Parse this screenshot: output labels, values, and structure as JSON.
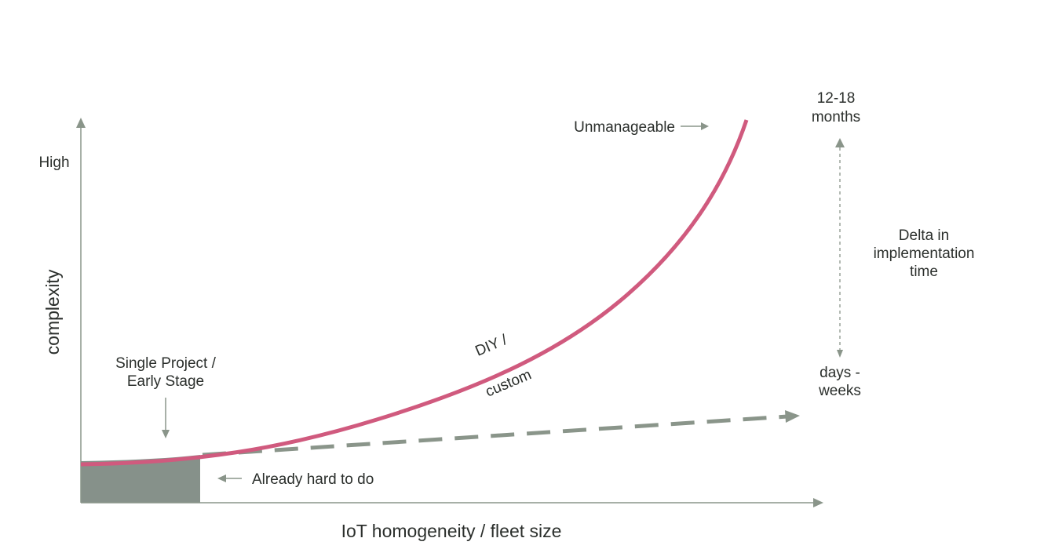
{
  "axes": {
    "x_label": "IoT homogeneity / fleet size",
    "y_label": "complexity",
    "y_high_label": "High"
  },
  "annotations": {
    "unmanageable": "Unmanageable",
    "single_project_line1": "Single Project /",
    "single_project_line2": "Early Stage",
    "already_hard": "Already hard to do",
    "diy_line1": "DIY /",
    "diy_line2": "custom",
    "months_line1": "12-18",
    "months_line2": "months",
    "days_line1": "days -",
    "days_line2": "weeks",
    "delta_line1": "Delta in",
    "delta_line2": "implementation",
    "delta_line3": "time"
  },
  "colors": {
    "curve": "#d05a7e",
    "dashed_line": "#8a958a",
    "shaded_area": "#86918a",
    "axis": "#8a958a",
    "text": "#2b2f2c"
  }
}
